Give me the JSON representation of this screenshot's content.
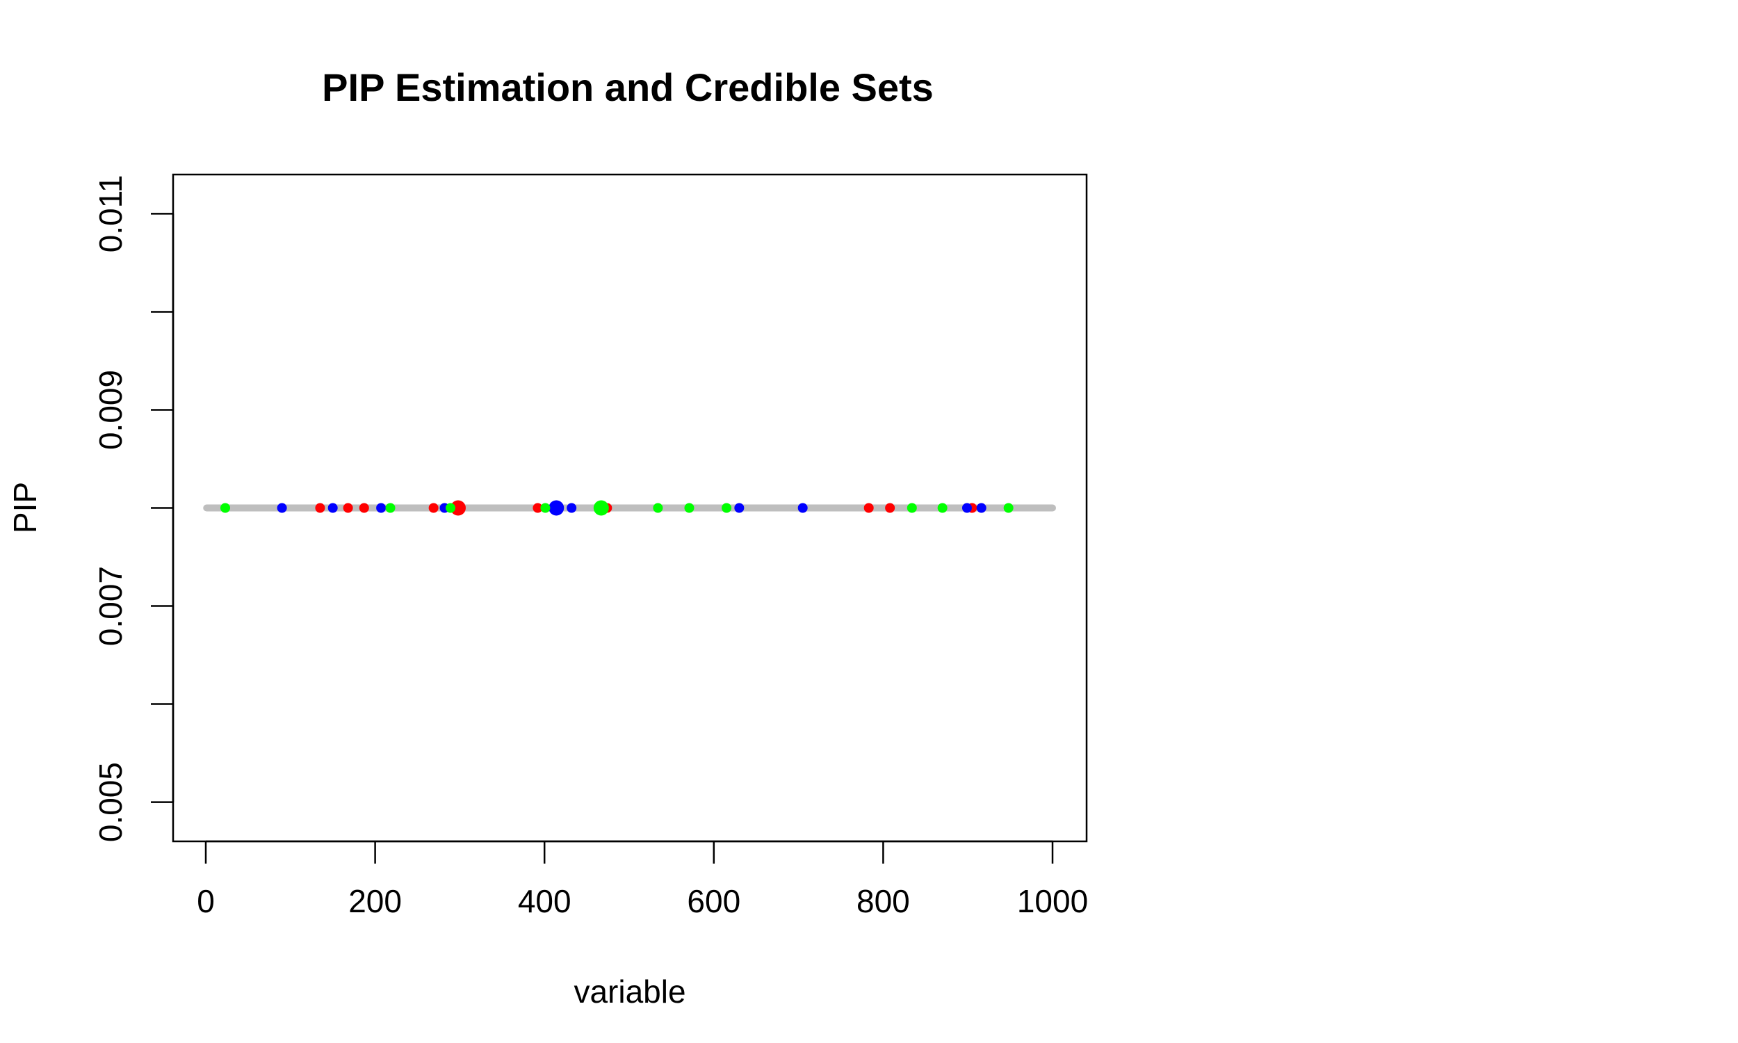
{
  "chart_data": {
    "type": "scatter",
    "title": "PIP Estimation and Credible Sets",
    "xlabel": "variable",
    "ylabel": "PIP",
    "xlim": [
      0,
      1000
    ],
    "ylim": [
      0.0046,
      0.0114
    ],
    "x_ticks": [
      0,
      200,
      400,
      600,
      800,
      1000
    ],
    "x_tick_labels": [
      "0",
      "200",
      "400",
      "600",
      "800",
      "1000"
    ],
    "y_ticks": [
      0.005,
      0.006,
      0.007,
      0.008,
      0.009,
      0.01,
      0.011
    ],
    "y_tick_labels": [
      "0.005",
      "",
      "0.007",
      "",
      "0.009",
      "",
      "0.011"
    ],
    "grid": false,
    "legend": "none",
    "baseline": {
      "x_range": [
        1,
        1000
      ],
      "y": 0.008,
      "color": "#bebebe"
    },
    "series": [
      {
        "color": "#ff0000",
        "points": [
          {
            "x": 135,
            "y": 0.008
          },
          {
            "x": 168,
            "y": 0.008
          },
          {
            "x": 187,
            "y": 0.008
          },
          {
            "x": 269,
            "y": 0.008
          },
          {
            "x": 298,
            "y": 0.008,
            "large": true
          },
          {
            "x": 392,
            "y": 0.008
          },
          {
            "x": 474,
            "y": 0.008
          },
          {
            "x": 783,
            "y": 0.008
          },
          {
            "x": 808,
            "y": 0.008
          },
          {
            "x": 905,
            "y": 0.008
          }
        ]
      },
      {
        "color": "#0000ff",
        "points": [
          {
            "x": 90,
            "y": 0.008
          },
          {
            "x": 150,
            "y": 0.008
          },
          {
            "x": 207,
            "y": 0.008
          },
          {
            "x": 282,
            "y": 0.008
          },
          {
            "x": 414,
            "y": 0.008,
            "large": true
          },
          {
            "x": 432,
            "y": 0.008
          },
          {
            "x": 630,
            "y": 0.008
          },
          {
            "x": 705,
            "y": 0.008
          },
          {
            "x": 899,
            "y": 0.008
          },
          {
            "x": 916,
            "y": 0.008
          }
        ]
      },
      {
        "color": "#00ff00",
        "points": [
          {
            "x": 23,
            "y": 0.008
          },
          {
            "x": 218,
            "y": 0.008
          },
          {
            "x": 289,
            "y": 0.008
          },
          {
            "x": 401,
            "y": 0.008
          },
          {
            "x": 467,
            "y": 0.008,
            "large": true
          },
          {
            "x": 534,
            "y": 0.008
          },
          {
            "x": 571,
            "y": 0.008
          },
          {
            "x": 615,
            "y": 0.008
          },
          {
            "x": 834,
            "y": 0.008
          },
          {
            "x": 870,
            "y": 0.008
          },
          {
            "x": 948,
            "y": 0.008
          }
        ]
      }
    ]
  }
}
